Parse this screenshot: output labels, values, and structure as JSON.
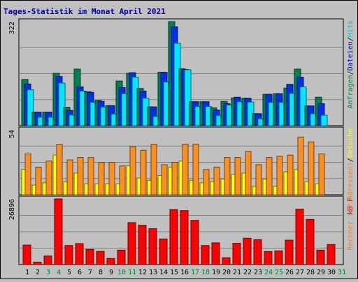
{
  "chart_data": [
    {
      "type": "bar",
      "title": "Tages-Statistik im Monat April 2021",
      "ytick_label": "322",
      "ylim": [
        0,
        322
      ],
      "grid": true,
      "right_label_parts": [
        {
          "text": "Anfragen",
          "color": "#008040"
        },
        {
          "text": "/",
          "color": "#000000"
        },
        {
          "text": "Dateien",
          "color": "#0000c0"
        },
        {
          "text": "/",
          "color": "#000000"
        },
        {
          "text": "Hits",
          "color": "#00c0c0"
        }
      ],
      "categories": [
        "1",
        "2",
        "3",
        "4",
        "5",
        "6",
        "7",
        "8",
        "9",
        "10",
        "11",
        "12",
        "13",
        "14",
        "15",
        "16",
        "17",
        "18",
        "19",
        "20",
        "21",
        "22",
        "23",
        "24",
        "25",
        "26",
        "27",
        "28",
        "29",
        "30",
        "31"
      ],
      "weekend_days": [
        "3",
        "4",
        "10",
        "11",
        "17",
        "18",
        "24",
        "25",
        "31"
      ],
      "series": [
        {
          "name": "Anfragen",
          "color": "#008050",
          "values": [
            143,
            42,
            42,
            162,
            57,
            175,
            105,
            78,
            62,
            138,
            162,
            115,
            58,
            165,
            322,
            176,
            74,
            74,
            55,
            75,
            86,
            85,
            37,
            97,
            99,
            116,
            175,
            61,
            88,
            0,
            0
          ]
        },
        {
          "name": "Dateien",
          "color": "#0030e8",
          "values": [
            129,
            42,
            42,
            152,
            47,
            120,
            103,
            75,
            62,
            118,
            164,
            107,
            58,
            165,
            306,
            174,
            74,
            74,
            48,
            68,
            88,
            85,
            37,
            97,
            99,
            128,
            150,
            61,
            68,
            0,
            0
          ]
        },
        {
          "name": "Hits",
          "color": "#00e8ff",
          "values": [
            111,
            26,
            26,
            132,
            33,
            107,
            72,
            57,
            36,
            99,
            150,
            85,
            28,
            135,
            255,
            173,
            59,
            59,
            31,
            64,
            74,
            73,
            21,
            72,
            72,
            100,
            120,
            37,
            32,
            0,
            0
          ]
        }
      ]
    },
    {
      "type": "bar",
      "ytick_label": "54",
      "ylim": [
        0,
        54
      ],
      "grid": true,
      "right_label_parts": [
        {
          "text": "Rechner (IP-Adressen)",
          "color": "#ff8000"
        },
        {
          "text": "/",
          "color": "#000000"
        },
        {
          "text": "Besuche",
          "color": "#ffff00"
        }
      ],
      "categories": [
        "1",
        "2",
        "3",
        "4",
        "5",
        "6",
        "7",
        "8",
        "9",
        "10",
        "11",
        "12",
        "13",
        "14",
        "15",
        "16",
        "17",
        "18",
        "19",
        "20",
        "21",
        "22",
        "23",
        "24",
        "25",
        "26",
        "27",
        "28",
        "29",
        "30",
        "31"
      ],
      "series": [
        {
          "name": "Besuche",
          "color": "#ffff00",
          "values": [
            21,
            8,
            10,
            33,
            11,
            18,
            9,
            9,
            9,
            9,
            24,
            14,
            12,
            16,
            23,
            28,
            12,
            10,
            11,
            13,
            17,
            18,
            7,
            13,
            7,
            19,
            21,
            11,
            9,
            0,
            0
          ]
        },
        {
          "name": "Rechner",
          "color": "#ff9020",
          "values": [
            34,
            23,
            28,
            42,
            29,
            31,
            31,
            27,
            27,
            24,
            40,
            37,
            42,
            25,
            27,
            42,
            42,
            21,
            23,
            31,
            31,
            36,
            25,
            31,
            32,
            33,
            48,
            44,
            34,
            0,
            0
          ]
        }
      ]
    },
    {
      "type": "bar",
      "ytick_label": "26896",
      "ylim": [
        0,
        26896
      ],
      "grid": true,
      "right_label_parts": [
        {
          "text": "kB F",
          "color": "#ff0000"
        }
      ],
      "categories": [
        "1",
        "2",
        "3",
        "4",
        "5",
        "6",
        "7",
        "8",
        "9",
        "10",
        "11",
        "12",
        "13",
        "14",
        "15",
        "16",
        "17",
        "18",
        "19",
        "20",
        "21",
        "22",
        "23",
        "24",
        "25",
        "26",
        "27",
        "28",
        "29",
        "30",
        "31"
      ],
      "series": [
        {
          "name": "kB F",
          "color": "#ff0000",
          "values": [
            8000,
            1000,
            3500,
            26896,
            7800,
            8600,
            6200,
            5400,
            2500,
            5900,
            17200,
            16100,
            14700,
            10500,
            22500,
            22100,
            18100,
            7800,
            8900,
            2800,
            8700,
            10800,
            10200,
            5300,
            5600,
            10000,
            22700,
            18500,
            5900,
            8200,
            0
          ]
        }
      ]
    }
  ]
}
